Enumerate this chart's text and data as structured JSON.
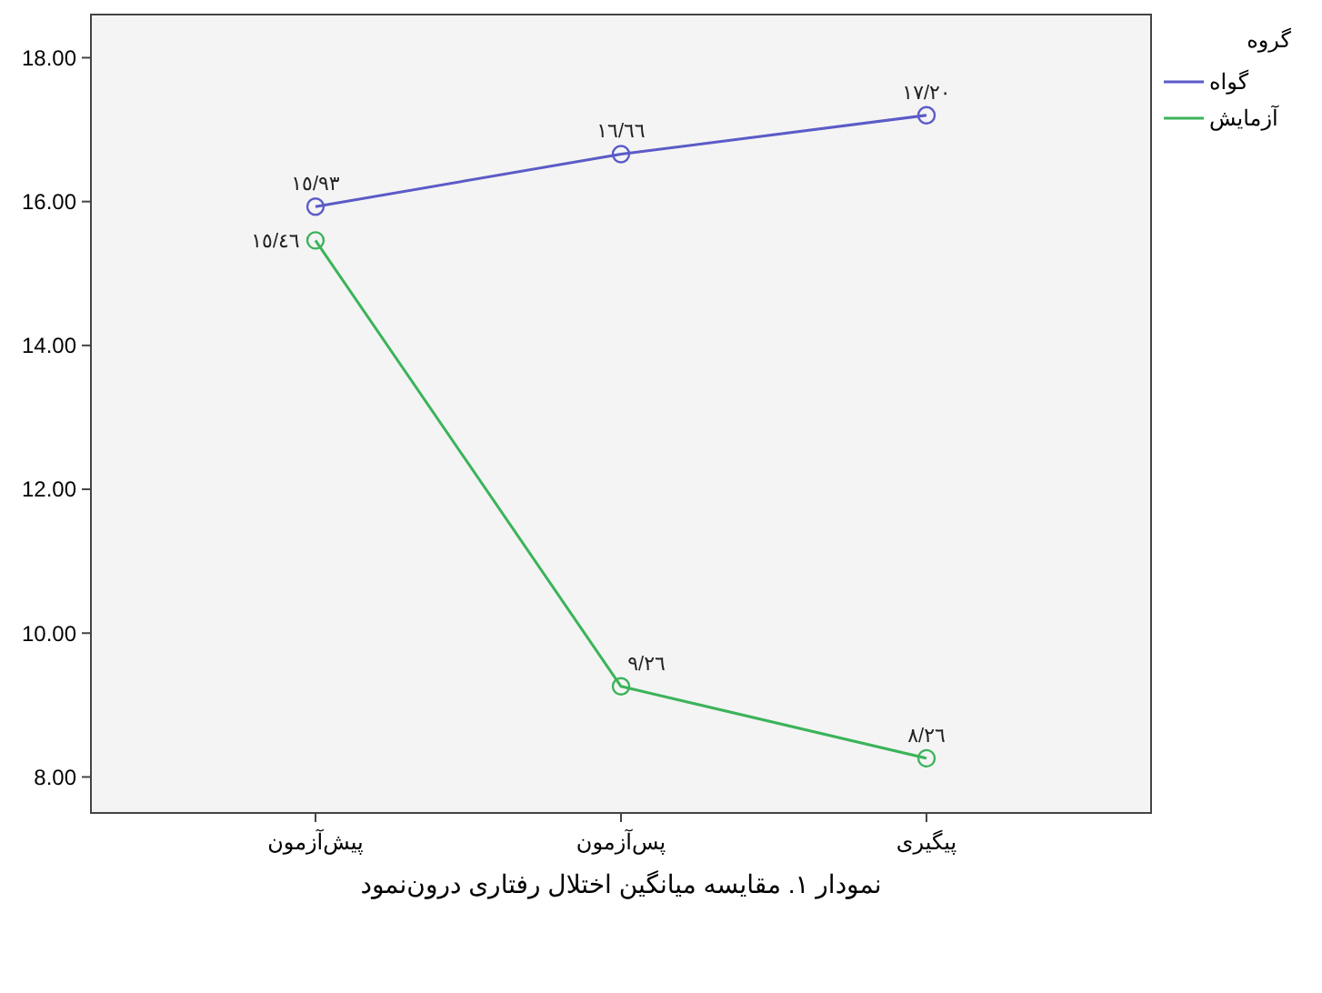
{
  "chart_data": {
    "type": "line",
    "title": "نمودار ۱. مقایسه میانگین اختلال رفتاری درون‌نمود",
    "categories": [
      "پیش‌آزمون",
      "پس‌آزمون",
      "پیگیری"
    ],
    "series": [
      {
        "name": "گواه",
        "color": "#5b5bc8",
        "values": [
          15.93,
          16.66,
          17.2
        ],
        "value_labels": [
          "١٥/٩٣",
          "١٦/٦٦",
          "١٧/٢٠"
        ]
      },
      {
        "name": "آزمایش",
        "color": "#3cb35a",
        "values": [
          15.46,
          9.26,
          8.26
        ],
        "value_labels": [
          "١٥/٤٦",
          "٩/٢٦",
          "٨/٢٦"
        ]
      }
    ],
    "legend_title": "گروه",
    "legend": "right",
    "marker": "circle",
    "grid": false,
    "ylim": [
      7.5,
      18.6
    ],
    "yticks": [
      {
        "value": 8,
        "label": "8.00"
      },
      {
        "value": 10,
        "label": "10.00"
      },
      {
        "value": 12,
        "label": "12.00"
      },
      {
        "value": 14,
        "label": "14.00"
      },
      {
        "value": 16,
        "label": "16.00"
      },
      {
        "value": 18,
        "label": "18.00"
      }
    ]
  }
}
